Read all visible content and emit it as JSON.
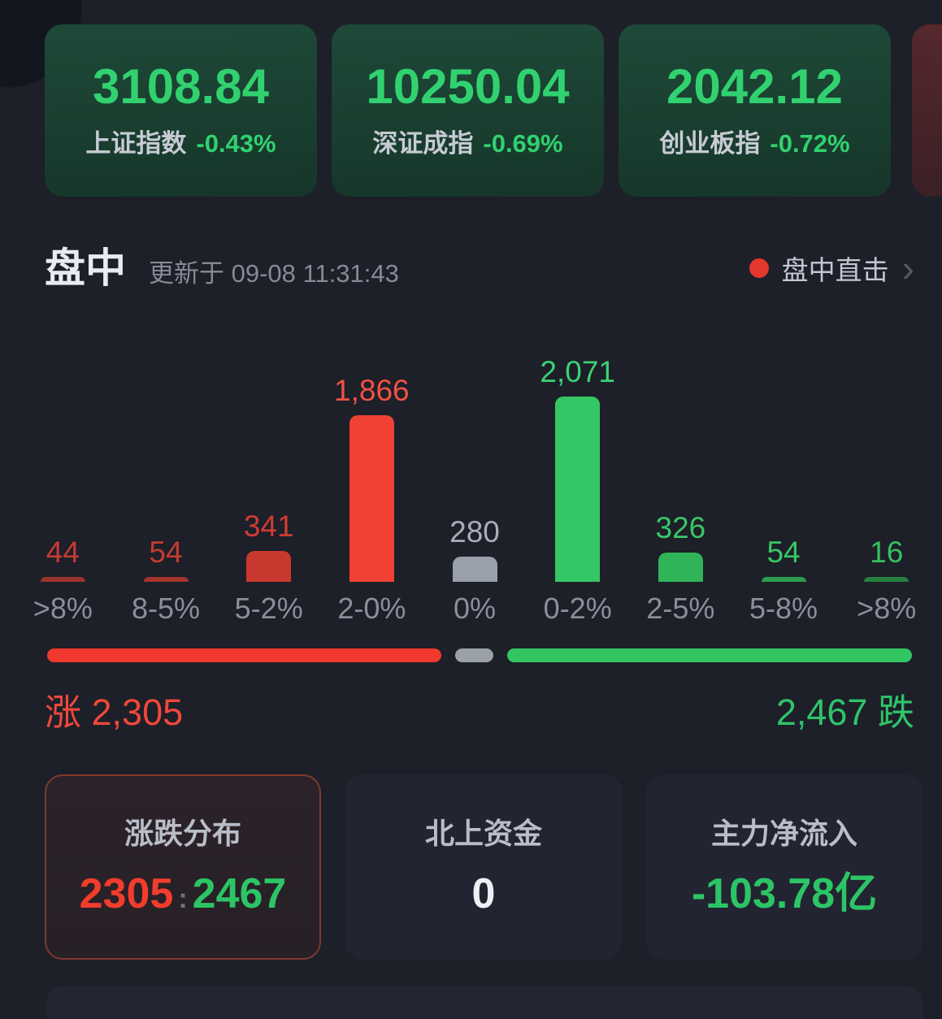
{
  "indices": [
    {
      "value": "3108.84",
      "name": "上证指数",
      "change": "-0.43%"
    },
    {
      "value": "10250.04",
      "name": "深证成指",
      "change": "-0.69%"
    },
    {
      "value": "2042.12",
      "name": "创业板指",
      "change": "-0.72%"
    }
  ],
  "section": {
    "title": "盘中",
    "updated": "更新于 09-08 11:31:43",
    "live_label": "盘中直击",
    "chevron": "›"
  },
  "chart_data": {
    "type": "bar",
    "title": "",
    "xlabel": "",
    "ylabel": "",
    "categories": [
      ">8%",
      "8-5%",
      "5-2%",
      "2-0%",
      "0%",
      "0-2%",
      "2-5%",
      "5-8%",
      ">8%"
    ],
    "values": [
      44,
      54,
      341,
      1866,
      280,
      2071,
      326,
      54,
      16
    ],
    "value_labels": [
      "44",
      "54",
      "341",
      "1,866",
      "280",
      "2,071",
      "326",
      "54",
      "16"
    ],
    "bar_colors": [
      "#9b332b",
      "#a5342c",
      "#c9382e",
      "#f04134",
      "#9aa0aa",
      "#35c765",
      "#2fb457",
      "#2b9c4e",
      "#27803f"
    ],
    "label_colors": [
      "#c43b31",
      "#c43b31",
      "#ce3c31",
      "#f25143",
      "#a9aeb9",
      "#3bd173",
      "#37c766",
      "#37c766",
      "#35c05f"
    ],
    "ylim": [
      0,
      2200
    ],
    "grid": false,
    "legend": "none"
  },
  "ratio_bar": {
    "segments": [
      {
        "name": "up",
        "color": "#f1392d",
        "grow": 489
      },
      {
        "name": "flat",
        "color": "#9ba1a9",
        "grow": 48
      },
      {
        "name": "down",
        "color": "#33c562",
        "grow": 502
      }
    ]
  },
  "updown": {
    "up_label": "涨",
    "up_value": "2,305",
    "down_value": "2,467",
    "down_label": "跌"
  },
  "cards": [
    {
      "title": "涨跌分布",
      "up": "2305",
      "separator": ":",
      "down": "2467"
    },
    {
      "title": "北上资金",
      "value": "0"
    },
    {
      "title": "主力净流入",
      "value": "-103.78亿"
    }
  ],
  "colors": {
    "background": "#1d1f29",
    "index_green": "#31d170",
    "up_red": "#f0483a",
    "down_green": "#2fc468",
    "live_dot_red": "#e5372c",
    "card_bg": "#222431",
    "selected_card_border": "#80392f"
  }
}
